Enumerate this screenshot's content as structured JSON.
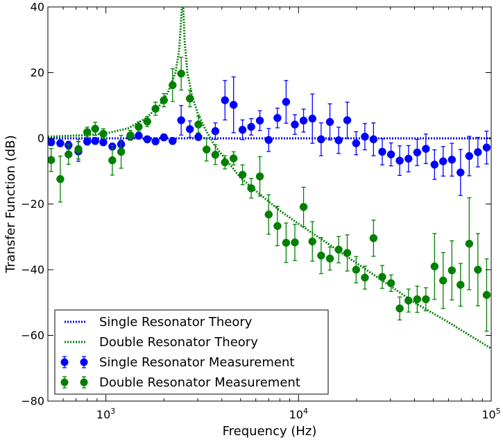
{
  "chart_data": {
    "type": "scatter",
    "xscale": "log",
    "xlim": [
      500,
      100000
    ],
    "ylim": [
      -80,
      40
    ],
    "xlabel": "Frequency (Hz)",
    "ylabel": "Transfer Function (dB)",
    "title": "",
    "xtick_labels": [
      {
        "value": 1000,
        "base": "10",
        "exp": "3"
      },
      {
        "value": 10000,
        "base": "10",
        "exp": "4"
      },
      {
        "value": 100000,
        "base": "10",
        "exp": "5"
      }
    ],
    "yticks": [
      -80,
      -60,
      -40,
      -20,
      0,
      20,
      40
    ],
    "legend_position": "lower-left",
    "legend": [
      {
        "label": "Single Resonator Theory",
        "kind": "line",
        "color": "#0000ff"
      },
      {
        "label": "Double Resonator Theory",
        "kind": "line",
        "color": "#008000"
      },
      {
        "label": "Single Resonator Measurement",
        "kind": "marker",
        "color": "#0000ff"
      },
      {
        "label": "Double Resonator Measurement",
        "kind": "marker",
        "color": "#008000"
      }
    ],
    "series": [
      {
        "name": "Single Resonator Theory",
        "kind": "line",
        "color": "#0000ff",
        "x": [
          500,
          100000
        ],
        "y": [
          0,
          0
        ]
      },
      {
        "name": "Double Resonator Theory",
        "kind": "line",
        "color": "#008000",
        "x": [
          500,
          800,
          1000,
          1300,
          1600,
          1900,
          2100,
          2300,
          2400,
          2450,
          2480,
          2520,
          2560,
          2650,
          2800,
          3000,
          3300,
          3700,
          4200,
          5000,
          6000,
          8000,
          10000,
          15000,
          20000,
          30000,
          40000,
          60000,
          80000,
          100000
        ],
        "y": [
          0.5,
          1.0,
          1.5,
          3.0,
          6.0,
          10.0,
          14.0,
          20.0,
          27.0,
          35.0,
          40.0,
          40.0,
          30.0,
          20.0,
          13.0,
          7.5,
          2.5,
          -2.5,
          -6.5,
          -12.0,
          -16.0,
          -22.0,
          -26.0,
          -33.0,
          -38.0,
          -45.0,
          -50.0,
          -56.0,
          -60.5,
          -64.0
        ]
      },
      {
        "name": "Single Resonator Measurement",
        "kind": "errorbar",
        "color": "#0000ff",
        "points": [
          {
            "x": 520,
            "y": -1.2,
            "err": 1.0
          },
          {
            "x": 580,
            "y": -1.5,
            "err": 1.0
          },
          {
            "x": 640,
            "y": -2.1,
            "err": 1.2
          },
          {
            "x": 720,
            "y": -4.0,
            "err": 3.0
          },
          {
            "x": 800,
            "y": -1.0,
            "err": 1.0
          },
          {
            "x": 880,
            "y": -0.8,
            "err": 1.0
          },
          {
            "x": 970,
            "y": -1.2,
            "err": 1.0
          },
          {
            "x": 1080,
            "y": -2.5,
            "err": 1.0
          },
          {
            "x": 1200,
            "y": -1.8,
            "err": 1.2
          },
          {
            "x": 1340,
            "y": 0.5,
            "err": 1.0
          },
          {
            "x": 1480,
            "y": 0.8,
            "err": 1.0
          },
          {
            "x": 1640,
            "y": -0.3,
            "err": 1.0
          },
          {
            "x": 1810,
            "y": -0.9,
            "err": 1.0
          },
          {
            "x": 2000,
            "y": 0.3,
            "err": 1.0
          },
          {
            "x": 2220,
            "y": -0.8,
            "err": 1.0
          },
          {
            "x": 2460,
            "y": 5.5,
            "err": 4.5
          },
          {
            "x": 2730,
            "y": 2.8,
            "err": 2.5
          },
          {
            "x": 3020,
            "y": 0.4,
            "err": 1.0
          },
          {
            "x": 3700,
            "y": 2.2,
            "err": 2.5
          },
          {
            "x": 4150,
            "y": 11.6,
            "err": 6.0
          },
          {
            "x": 4600,
            "y": 10.2,
            "err": 8.5
          },
          {
            "x": 5120,
            "y": 2.6,
            "err": 3.0
          },
          {
            "x": 5680,
            "y": 3.5,
            "err": 2.5
          },
          {
            "x": 6300,
            "y": 5.4,
            "err": 3.0
          },
          {
            "x": 7000,
            "y": -0.5,
            "err": 3.5
          },
          {
            "x": 7770,
            "y": 6.2,
            "err": 3.0
          },
          {
            "x": 8620,
            "y": 11.1,
            "err": 6.5
          },
          {
            "x": 9570,
            "y": 4.2,
            "err": 3.0
          },
          {
            "x": 10620,
            "y": 5.4,
            "err": 3.5
          },
          {
            "x": 11800,
            "y": 6.0,
            "err": 7.5
          },
          {
            "x": 13100,
            "y": -0.3,
            "err": 5.0
          },
          {
            "x": 14550,
            "y": 5.0,
            "err": 5.5
          },
          {
            "x": 16150,
            "y": -0.6,
            "err": 4.0
          },
          {
            "x": 17900,
            "y": 5.5,
            "err": 5.5
          },
          {
            "x": 19900,
            "y": -1.5,
            "err": 3.5
          },
          {
            "x": 22100,
            "y": 0.5,
            "err": 4.0
          },
          {
            "x": 24500,
            "y": -0.3,
            "err": 5.0
          },
          {
            "x": 27200,
            "y": -4.1,
            "err": 4.0
          },
          {
            "x": 30200,
            "y": -4.9,
            "err": 3.5
          },
          {
            "x": 33500,
            "y": -6.8,
            "err": 4.5
          },
          {
            "x": 37200,
            "y": -6.2,
            "err": 4.0
          },
          {
            "x": 41300,
            "y": -4.3,
            "err": 4.0
          },
          {
            "x": 45800,
            "y": -3.2,
            "err": 4.5
          },
          {
            "x": 50800,
            "y": -8.0,
            "err": 4.5
          },
          {
            "x": 56300,
            "y": -7.0,
            "err": 4.5
          },
          {
            "x": 62500,
            "y": -6.5,
            "err": 5.0
          },
          {
            "x": 69300,
            "y": -10.4,
            "err": 7.0
          },
          {
            "x": 76900,
            "y": -5.4,
            "err": 6.0
          },
          {
            "x": 85300,
            "y": -4.2,
            "err": 4.5
          },
          {
            "x": 94700,
            "y": -2.8,
            "err": 5.0
          }
        ]
      },
      {
        "name": "Double Resonator Measurement",
        "kind": "errorbar",
        "color": "#008000",
        "points": [
          {
            "x": 520,
            "y": -6.6,
            "err": 3.5
          },
          {
            "x": 580,
            "y": -12.4,
            "err": 7.0
          },
          {
            "x": 640,
            "y": -4.9,
            "err": 3.0
          },
          {
            "x": 720,
            "y": -3.3,
            "err": 3.0
          },
          {
            "x": 800,
            "y": 1.9,
            "err": 1.5
          },
          {
            "x": 880,
            "y": 2.9,
            "err": 2.0
          },
          {
            "x": 970,
            "y": 1.4,
            "err": 1.5
          },
          {
            "x": 1080,
            "y": -6.7,
            "err": 4.5
          },
          {
            "x": 1200,
            "y": -4.1,
            "err": 5.0
          },
          {
            "x": 1340,
            "y": 0.9,
            "err": 1.5
          },
          {
            "x": 1480,
            "y": 3.5,
            "err": 1.5
          },
          {
            "x": 1640,
            "y": 5.1,
            "err": 1.5
          },
          {
            "x": 1810,
            "y": 9.0,
            "err": 2.0
          },
          {
            "x": 2000,
            "y": 11.6,
            "err": 2.0
          },
          {
            "x": 2220,
            "y": 16.2,
            "err": 5.0
          },
          {
            "x": 2460,
            "y": 19.7,
            "err": 5.0
          },
          {
            "x": 2730,
            "y": 12.1,
            "err": 2.5
          },
          {
            "x": 3020,
            "y": 4.2,
            "err": 2.5
          },
          {
            "x": 3330,
            "y": -3.4,
            "err": 3.5
          },
          {
            "x": 3700,
            "y": -5.0,
            "err": 3.0
          },
          {
            "x": 4150,
            "y": -7.3,
            "err": 2.0
          },
          {
            "x": 4600,
            "y": -6.1,
            "err": 2.0
          },
          {
            "x": 5120,
            "y": -11.1,
            "err": 3.0
          },
          {
            "x": 5680,
            "y": -15.2,
            "err": 3.0
          },
          {
            "x": 6300,
            "y": -11.6,
            "err": 6.0
          },
          {
            "x": 7000,
            "y": -23.2,
            "err": 6.0
          },
          {
            "x": 7770,
            "y": -26.7,
            "err": 6.0
          },
          {
            "x": 8620,
            "y": -31.8,
            "err": 6.0
          },
          {
            "x": 9570,
            "y": -31.7,
            "err": 5.5
          },
          {
            "x": 10620,
            "y": -20.9,
            "err": 6.0
          },
          {
            "x": 11800,
            "y": -31.4,
            "err": 6.0
          },
          {
            "x": 13100,
            "y": -35.7,
            "err": 5.5
          },
          {
            "x": 14550,
            "y": -36.6,
            "err": 3.5
          },
          {
            "x": 16150,
            "y": -33.9,
            "err": 4.0
          },
          {
            "x": 17900,
            "y": -34.9,
            "err": 5.5
          },
          {
            "x": 19900,
            "y": -40.0,
            "err": 4.0
          },
          {
            "x": 22100,
            "y": -42.4,
            "err": 3.5
          },
          {
            "x": 24500,
            "y": -30.4,
            "err": 5.5
          },
          {
            "x": 27200,
            "y": -42.2,
            "err": 3.5
          },
          {
            "x": 30200,
            "y": -44.1,
            "err": 2.5
          },
          {
            "x": 33500,
            "y": -51.8,
            "err": 3.5
          },
          {
            "x": 37200,
            "y": -49.4,
            "err": 3.5
          },
          {
            "x": 41300,
            "y": -49.0,
            "err": 4.0
          },
          {
            "x": 45800,
            "y": -49.0,
            "err": 3.5
          },
          {
            "x": 50800,
            "y": -39.0,
            "err": 10.0
          },
          {
            "x": 56300,
            "y": -43.3,
            "err": 8.5
          },
          {
            "x": 62500,
            "y": -40.2,
            "err": 9.0
          },
          {
            "x": 69300,
            "y": -44.6,
            "err": 6.5
          },
          {
            "x": 76900,
            "y": -32.1,
            "err": 14.0
          },
          {
            "x": 85300,
            "y": -40.0,
            "err": 11.0
          },
          {
            "x": 94700,
            "y": -47.7,
            "err": 11.0
          }
        ]
      }
    ]
  }
}
